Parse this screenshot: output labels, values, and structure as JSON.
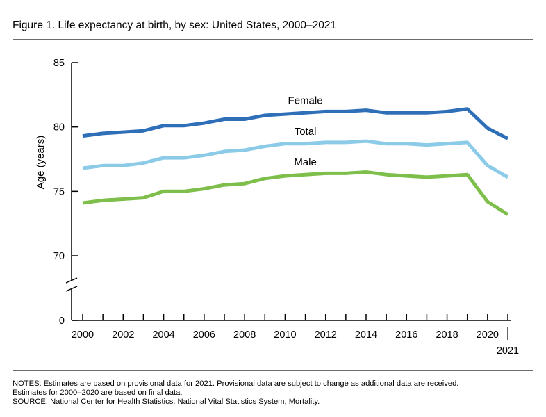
{
  "figure": {
    "title": "Figure 1. Life expectancy at birth, by sex: United States, 2000–2021"
  },
  "notes": [
    "NOTES: Estimates are based on provisional data for 2021. Provisional data are subject to change as additional data are received.",
    "Estimates for 2000–2020 are based on final data.",
    "SOURCE: National Center for Health Statistics, National Vital Statistics System, Mortality."
  ],
  "chart_data": {
    "type": "line",
    "title": "Figure 1. Life expectancy at birth, by sex: United States, 2000–2021",
    "xlabel": "",
    "ylabel": "Age (years)",
    "x": [
      2000,
      2001,
      2002,
      2003,
      2004,
      2005,
      2006,
      2007,
      2008,
      2009,
      2010,
      2011,
      2012,
      2013,
      2014,
      2015,
      2016,
      2017,
      2018,
      2019,
      2020,
      2021
    ],
    "x_tick_labels": [
      "2000",
      "2002",
      "2004",
      "2006",
      "2008",
      "2010",
      "2012",
      "2014",
      "2016",
      "2018",
      "2020",
      "2021"
    ],
    "y_tick_labels": [
      "0",
      "70",
      "75",
      "80",
      "85"
    ],
    "ylim": [
      70,
      85
    ],
    "y_axis_break": true,
    "y_baseline": 0,
    "grid": false,
    "legend": "direct labels on lines",
    "series": [
      {
        "name": "Female",
        "color": "#2f6fb8",
        "values": [
          79.3,
          79.5,
          79.6,
          79.7,
          80.1,
          80.1,
          80.3,
          80.6,
          80.6,
          80.9,
          81.0,
          81.1,
          81.2,
          81.2,
          81.3,
          81.1,
          81.1,
          81.1,
          81.2,
          81.4,
          79.9,
          79.1
        ]
      },
      {
        "name": "Total",
        "color": "#8ccbe8",
        "values": [
          76.8,
          77.0,
          77.0,
          77.2,
          77.6,
          77.6,
          77.8,
          78.1,
          78.2,
          78.5,
          78.7,
          78.7,
          78.8,
          78.8,
          78.9,
          78.7,
          78.7,
          78.6,
          78.7,
          78.8,
          77.0,
          76.1
        ]
      },
      {
        "name": "Male",
        "color": "#7dbf4a",
        "values": [
          74.1,
          74.3,
          74.4,
          74.5,
          75.0,
          75.0,
          75.2,
          75.5,
          75.6,
          76.0,
          76.2,
          76.3,
          76.4,
          76.4,
          76.5,
          76.3,
          76.2,
          76.1,
          76.2,
          76.3,
          74.2,
          73.2
        ]
      }
    ]
  }
}
